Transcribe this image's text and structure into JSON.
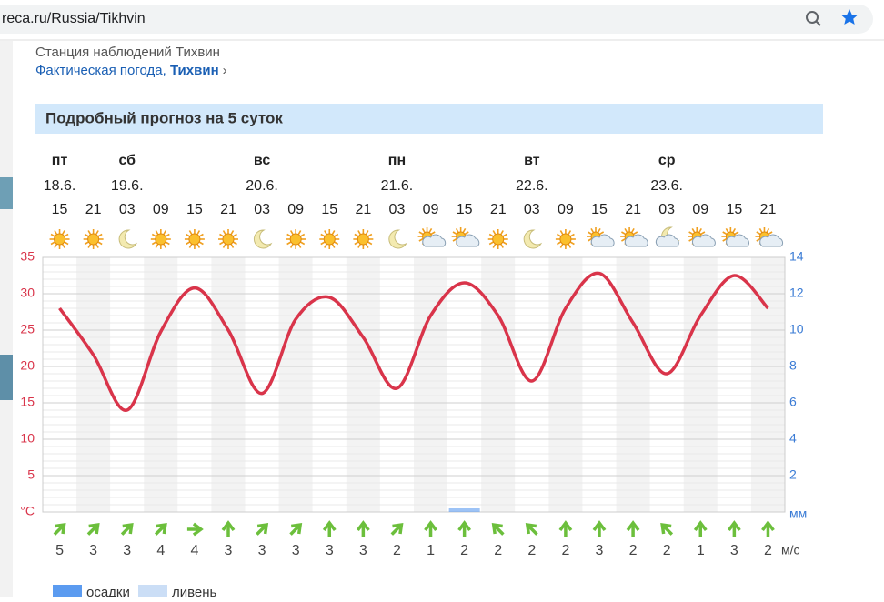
{
  "browser": {
    "url": "reca.ru/Russia/Tikhvin"
  },
  "station": {
    "title": "Станция наблюдений Тихвин",
    "link_prefix": "Фактическая погода, ",
    "link": "Тихвин",
    "chevron": "›"
  },
  "forecast": {
    "title": "Подробный прогноз на 5 суток",
    "day_names": [
      "пт",
      null,
      "сб",
      null,
      null,
      null,
      "вс",
      null,
      null,
      null,
      "пн",
      null,
      null,
      null,
      "вт",
      null,
      null,
      null,
      "ср",
      null,
      null,
      null
    ],
    "dates": [
      "18.6.",
      null,
      "19.6.",
      null,
      null,
      null,
      "20.6.",
      null,
      null,
      null,
      "21.6.",
      null,
      null,
      null,
      "22.6.",
      null,
      null,
      null,
      "23.6.",
      null,
      null,
      null
    ]
  },
  "chart_data": {
    "type": "line",
    "categories": [
      "15",
      "21",
      "03",
      "09",
      "15",
      "21",
      "03",
      "09",
      "15",
      "21",
      "03",
      "09",
      "15",
      "21",
      "03",
      "09",
      "15",
      "21",
      "03",
      "09",
      "15",
      "21"
    ],
    "series": [
      {
        "color": "#d9344a",
        "values": [
          28,
          21.6,
          14,
          24.8,
          30.8,
          25,
          16.3,
          26.5,
          29.5,
          24,
          17,
          27,
          31.5,
          27,
          18,
          28,
          32.8,
          26,
          19,
          27,
          32.5,
          28
        ]
      },
      {
        "color": "#5b9bf0",
        "axis": "y2",
        "values": [
          0,
          0,
          0,
          0,
          0,
          0,
          0,
          0,
          0,
          0,
          0,
          0,
          0.1,
          0,
          0,
          0,
          0,
          0,
          0,
          0,
          0,
          0
        ]
      }
    ],
    "ylim": [
      0,
      35
    ],
    "yticks": [
      {
        "value": 0,
        "label": "°C"
      },
      5,
      10,
      15,
      20,
      25,
      30,
      35
    ],
    "y2lim": [
      0,
      14
    ],
    "y2ticks": [
      {
        "value": 0,
        "label": "мм"
      },
      2,
      4,
      6,
      8,
      10,
      12,
      14
    ],
    "grid": true,
    "legend": [
      {
        "name": "осадки",
        "color": "#5b9bf0"
      },
      {
        "name": "ливень",
        "color": "#a8c8f0"
      }
    ]
  },
  "wind": {
    "speeds": [
      5,
      3,
      3,
      4,
      4,
      3,
      3,
      3,
      3,
      3,
      2,
      1,
      2,
      2,
      2,
      2,
      3,
      2,
      2,
      1,
      3,
      2
    ],
    "unit": "м/с"
  }
}
